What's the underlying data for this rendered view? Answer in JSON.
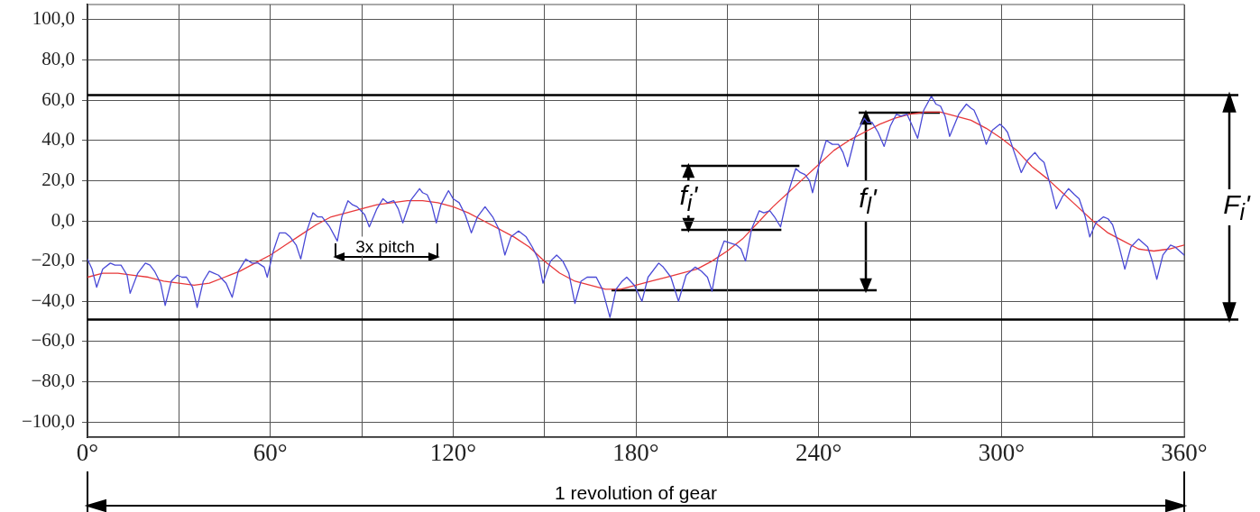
{
  "chart_data": {
    "type": "line",
    "marker": "none",
    "grid": true,
    "xlim": [
      0,
      360
    ],
    "xticks": [
      {
        "value": 0,
        "label": "0°"
      },
      {
        "value": 30,
        "label": null
      },
      {
        "value": 60,
        "label": "60°"
      },
      {
        "value": 90,
        "label": null
      },
      {
        "value": 120,
        "label": "120°"
      },
      {
        "value": 150,
        "label": null
      },
      {
        "value": 180,
        "label": "180°"
      },
      {
        "value": 210,
        "label": null
      },
      {
        "value": 240,
        "label": "240°"
      },
      {
        "value": 270,
        "label": null
      },
      {
        "value": 300,
        "label": "300°"
      },
      {
        "value": 330,
        "label": null
      },
      {
        "value": 360,
        "label": "360°"
      }
    ],
    "ylim": [
      -107.5,
      107.5
    ],
    "yticks": [
      {
        "value": -100,
        "label": "−100,0"
      },
      {
        "value": -80,
        "label": "−80,0"
      },
      {
        "value": -60,
        "label": "−60,0"
      },
      {
        "value": -40,
        "label": "−40,0"
      },
      {
        "value": -20,
        "label": "−20,0"
      },
      {
        "value": 0,
        "label": "0,0"
      },
      {
        "value": 20,
        "label": "20,0"
      },
      {
        "value": 40,
        "label": "40,0"
      },
      {
        "value": 60,
        "label": "60,0"
      },
      {
        "value": 80,
        "label": "80,0"
      },
      {
        "value": 100,
        "label": "100,0"
      }
    ],
    "series": [
      {
        "color": "#4a4ad6",
        "x": [
          0,
          1.5,
          3,
          5,
          7.5,
          9,
          11,
          13,
          14,
          16.5,
          19,
          20.5,
          22,
          24,
          25.5,
          27.5,
          29.5,
          31,
          32.5,
          34.5,
          36,
          38,
          40,
          41.5,
          43,
          45.5,
          47.5,
          49.5,
          52,
          54,
          56,
          58,
          59,
          61,
          63,
          65,
          66.5,
          68.5,
          70,
          72,
          74,
          75.5,
          77,
          79.5,
          82,
          83.5,
          85.5,
          87,
          88.5,
          91,
          92.5,
          95,
          97,
          98.5,
          100.5,
          102,
          103.5,
          106,
          109,
          110,
          111.5,
          113,
          114.5,
          116,
          118.5,
          120,
          122,
          124,
          126,
          128,
          130.5,
          132,
          133,
          135,
          137,
          139,
          141.5,
          144,
          146,
          148,
          149.5,
          152,
          154,
          156,
          158,
          160,
          162,
          164,
          167,
          169,
          171.5,
          173.5,
          175.5,
          177,
          179.5,
          182,
          184,
          187.5,
          189,
          191.5,
          194,
          196.5,
          199.5,
          201.5,
          203.5,
          205,
          207,
          209,
          211,
          213,
          214.5,
          216,
          218,
          220.5,
          222,
          224,
          225.5,
          227.5,
          230,
          232.5,
          234,
          235.5,
          237,
          238,
          240.5,
          242.5,
          244.5,
          246.5,
          248,
          249.5,
          252,
          255,
          256,
          257.5,
          259.5,
          261.5,
          263.5,
          265.5,
          267,
          269,
          270.5,
          272.5,
          274.5,
          277,
          278.5,
          280,
          281.5,
          283,
          286,
          288.5,
          290,
          291,
          293,
          295,
          297,
          299.5,
          301,
          302,
          304,
          306.5,
          308.5,
          311,
          312.5,
          314,
          316,
          318,
          320,
          322,
          324,
          325.5,
          327.5,
          329,
          331,
          333.5,
          335,
          336.5,
          338.5,
          340.5,
          342.5,
          345,
          346.5,
          348,
          349.5,
          351,
          353,
          355.5,
          357,
          358.5,
          360
        ],
        "values": [
          -19,
          -24,
          -33,
          -24,
          -21,
          -22,
          -22,
          -27,
          -36,
          -26,
          -21,
          -22,
          -25,
          -31,
          -42,
          -30,
          -27,
          -28,
          -28,
          -33,
          -43,
          -30,
          -25,
          -26,
          -27,
          -31,
          -38,
          -25,
          -19,
          -21,
          -21,
          -23,
          -28,
          -15,
          -6,
          -6,
          -8,
          -12,
          -19,
          -5,
          4,
          2,
          2,
          -3,
          -10,
          2,
          10,
          8,
          7,
          3,
          -3,
          6,
          11,
          9,
          10,
          6,
          -1,
          10,
          16,
          14,
          13,
          8,
          -1,
          8,
          15,
          11,
          9,
          3,
          -6,
          2,
          7,
          4,
          2,
          -4,
          -17,
          -8,
          -5,
          -8,
          -13,
          -19,
          -31,
          -20,
          -17,
          -20,
          -26,
          -41,
          -30,
          -28,
          -28,
          -34,
          -48,
          -34,
          -30,
          -28,
          -32,
          -40,
          -28,
          -21,
          -23,
          -28,
          -40,
          -27,
          -23,
          -25,
          -28,
          -35,
          -18,
          -10,
          -11,
          -12,
          -14,
          -20,
          -4,
          5,
          4,
          5,
          2,
          -3,
          14,
          26,
          24,
          23,
          20,
          14,
          30,
          40,
          38,
          38,
          34,
          27,
          42,
          51,
          49,
          49,
          44,
          37,
          47,
          53,
          52,
          53,
          48,
          41,
          55,
          62,
          58,
          57,
          52,
          42,
          53,
          58,
          56,
          55,
          48,
          38,
          45,
          48,
          46,
          44,
          35,
          24,
          30,
          34,
          31,
          29,
          18,
          6,
          12,
          16,
          13,
          11,
          2,
          -8,
          -1,
          2,
          1,
          -2,
          -12,
          -24,
          -13,
          -9,
          -11,
          -13,
          -20,
          -29,
          -17,
          -12,
          -13,
          -15,
          -17
        ]
      },
      {
        "color": "#e8383a",
        "x": [
          0,
          5,
          10,
          15,
          20,
          25,
          30,
          35,
          40,
          45,
          50,
          55,
          60,
          65,
          70,
          75,
          80,
          85,
          90,
          95,
          100,
          105,
          110,
          115,
          120,
          125,
          130,
          135,
          140,
          145,
          150,
          155,
          160,
          165,
          170,
          175,
          180,
          185,
          190,
          195,
          200,
          205,
          210,
          215,
          220,
          225,
          230,
          235,
          240,
          245,
          250,
          255,
          260,
          265,
          270,
          275,
          280,
          285,
          290,
          295,
          300,
          305,
          310,
          315,
          320,
          325,
          330,
          335,
          340,
          345,
          350,
          355,
          360
        ],
        "values": [
          -28,
          -26,
          -26,
          -27,
          -28,
          -30,
          -31,
          -32,
          -31,
          -28,
          -25,
          -21,
          -17,
          -12,
          -7,
          -2,
          2,
          4,
          6,
          8,
          9,
          10,
          10,
          9,
          7,
          4,
          0,
          -4,
          -8,
          -13,
          -20,
          -26,
          -30,
          -32,
          -34,
          -34,
          -32,
          -30,
          -28,
          -26,
          -24,
          -20,
          -15,
          -9,
          -1,
          7,
          14,
          21,
          28,
          35,
          40,
          44,
          48,
          51,
          53,
          54,
          54,
          52,
          50,
          46,
          41,
          35,
          27,
          21,
          14,
          7,
          0,
          -6,
          -10,
          -14,
          -15,
          -14,
          -12
        ]
      }
    ],
    "ref_lines": [
      {
        "axis": "y",
        "value": 62.5,
        "color": "#000000"
      },
      {
        "axis": "y",
        "value": -49,
        "color": "#000000"
      }
    ],
    "annotations": [
      "3x pitch",
      {
        "text": "f$_{i}$'",
        "x": 232.5,
        "y": 26
      },
      "f$_{l}$'",
      "F$_{i}$'",
      "1 revolution of gear"
    ]
  }
}
